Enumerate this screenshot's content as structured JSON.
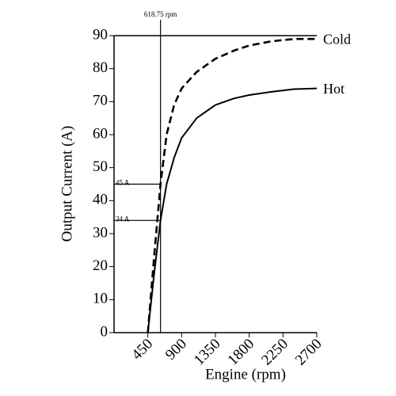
{
  "chart_data": {
    "type": "line",
    "xlabel": "Engine (rpm)",
    "ylabel": "Output Current (A)",
    "x": [
      450,
      530,
      618.75,
      700,
      800,
      900,
      1100,
      1350,
      1600,
      1800,
      2100,
      2400,
      2700
    ],
    "series": [
      {
        "name": "Cold",
        "color": "#000000",
        "dash": true,
        "values": [
          0,
          22,
          45,
          60,
          69,
          74,
          79,
          83,
          85.5,
          87,
          88.3,
          89,
          89
        ]
      },
      {
        "name": "Hot",
        "color": "#000000",
        "dash": false,
        "values": [
          0,
          17,
          34,
          45,
          53,
          59,
          65,
          69,
          71,
          72,
          73,
          73.8,
          74
        ]
      }
    ],
    "xlim": [
      0,
      2700
    ],
    "ylim": [
      0,
      90
    ],
    "xticks": [
      450,
      900,
      1350,
      1800,
      2250,
      2700
    ],
    "yticks": [
      0,
      10,
      20,
      30,
      40,
      50,
      60,
      70,
      80,
      90
    ],
    "annotations": [
      {
        "text": "618.75 rpm",
        "x": 618.75
      },
      {
        "text": "45 A",
        "y": 45
      },
      {
        "text": "34 A",
        "y": 34
      }
    ]
  }
}
